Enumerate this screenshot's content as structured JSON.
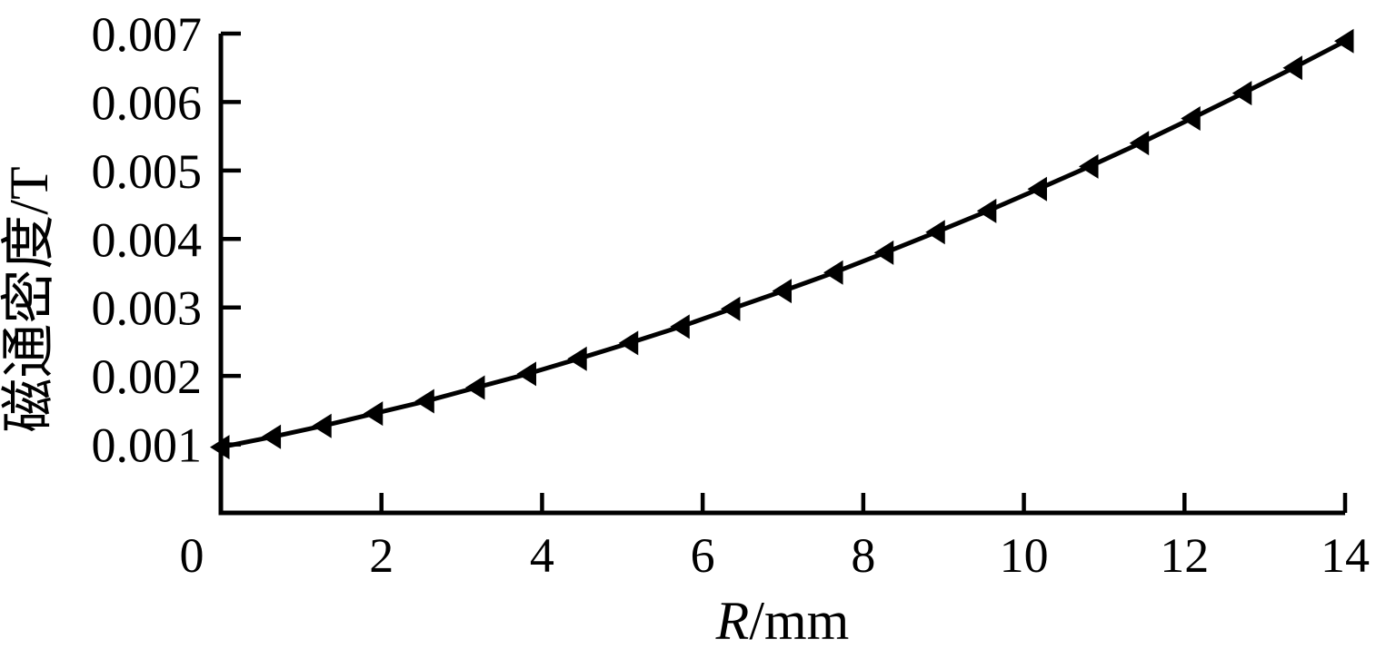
{
  "figure": {
    "background_color": "#ffffff",
    "ink_color": "#000000"
  },
  "chart_data": {
    "type": "line",
    "title": "",
    "xlabel": "R/mm",
    "xlabel_variable": "R",
    "xlabel_unit": "/mm",
    "ylabel": "磁通密度/T",
    "xlim": [
      0,
      14
    ],
    "ylim": [
      0,
      0.007
    ],
    "x_tick_values": [
      0,
      2,
      4,
      6,
      8,
      10,
      12,
      14
    ],
    "x_tick_labels": [
      "0",
      "2",
      "4",
      "6",
      "8",
      "10",
      "12",
      "14"
    ],
    "y_tick_values": [
      0.001,
      0.002,
      0.003,
      0.004,
      0.005,
      0.006,
      0.007
    ],
    "y_tick_labels": [
      "0.001",
      "0.002",
      "0.003",
      "0.004",
      "0.005",
      "0.006",
      "0.007"
    ],
    "grid": false,
    "legend_position": "none",
    "series": [
      {
        "marker": "triangle-left",
        "line_color": "#000000",
        "marker_color": "#000000",
        "x": [
          0,
          0.64,
          1.27,
          1.91,
          2.55,
          3.18,
          3.82,
          4.45,
          5.09,
          5.73,
          6.36,
          7.0,
          7.64,
          8.27,
          8.91,
          9.55,
          10.18,
          10.82,
          11.45,
          12.09,
          12.73,
          13.36,
          14.0
        ],
        "y": [
          0.00096,
          0.00111,
          0.00127,
          0.00145,
          0.00163,
          0.00183,
          0.00203,
          0.00225,
          0.00248,
          0.00272,
          0.00298,
          0.00324,
          0.00351,
          0.0038,
          0.0041,
          0.00441,
          0.00473,
          0.00506,
          0.0054,
          0.00576,
          0.00613,
          0.0065,
          0.00689
        ]
      }
    ]
  }
}
